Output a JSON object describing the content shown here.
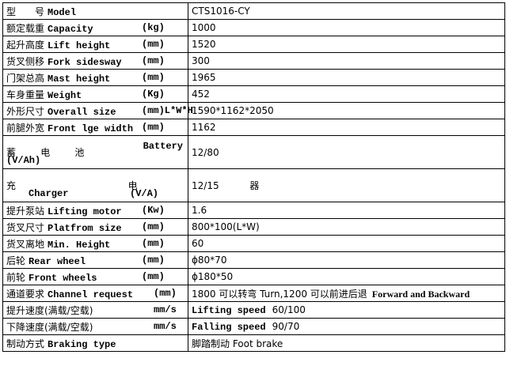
{
  "table": {
    "rows": [
      {
        "cn": "型　　号",
        "en": "Model",
        "value": "CTS1016-CY"
      },
      {
        "cn": "额定载重",
        "en": "Capacity",
        "unit": "(kg)",
        "value": "1000"
      },
      {
        "cn": "起升高度",
        "en": "Lift height",
        "unit": "(mm)",
        "value": "1520"
      },
      {
        "cn": "货叉侧移",
        "en": "Fork sidesway",
        "unit": "(mm)",
        "value": "300"
      },
      {
        "cn": "门架总高",
        "en": "Mast height",
        "unit": "(mm)",
        "value": "1965"
      },
      {
        "cn": "车身重量",
        "en": "Weight",
        "unit": "(Kg)",
        "value": "452"
      },
      {
        "cn": "外形尺寸",
        "en": "Overall size",
        "unit": "(mm)L*W*H",
        "value": "1590*1162*2050"
      },
      {
        "cn": "前腿外宽",
        "en": "Front lge width",
        "unit": "(mm)",
        "value": "1162"
      },
      {
        "cn": "蓄电池",
        "en": "Battery",
        "unit": "(V/Ah)",
        "value": "12/80"
      },
      {
        "cn": "充电器",
        "en": "Charger",
        "unit": "(V/A)",
        "value": "12/15"
      },
      {
        "cn": "提升泵站",
        "en": "Lifting motor",
        "unit": "(Kw)",
        "value": "1.6"
      },
      {
        "cn": "货叉尺寸",
        "en": "Platfrom size",
        "unit": "(mm)",
        "value": "800*100(L*W)"
      },
      {
        "cn": "货叉离地",
        "en": "Min. Height",
        "unit": "(mm)",
        "value": "60"
      },
      {
        "cn": "后轮",
        "en": "Rear wheel",
        "unit": "(mm)",
        "value": "ϕ80*70"
      },
      {
        "cn": "前轮",
        "en": "Front wheels",
        "unit": "(mm)",
        "value": "ϕ180*50"
      },
      {
        "cn": "通道要求",
        "en": "Channel request",
        "unit": "(mm)",
        "value": "1800 可以转弯 Turn,1200 可以前进后退",
        "value_note": "Forward and Backward"
      },
      {
        "cn": "提升速度(满载/空载)",
        "unit": "mm/s",
        "value_label": "Lifting speed",
        "value": "60/100"
      },
      {
        "cn": "下降速度(满载/空载)",
        "unit": "mm/s",
        "value_label": "Falling speed",
        "value": "90/70"
      },
      {
        "cn": "制动方式",
        "en": "Braking type",
        "value": "脚踏制动 Foot brake"
      }
    ]
  }
}
